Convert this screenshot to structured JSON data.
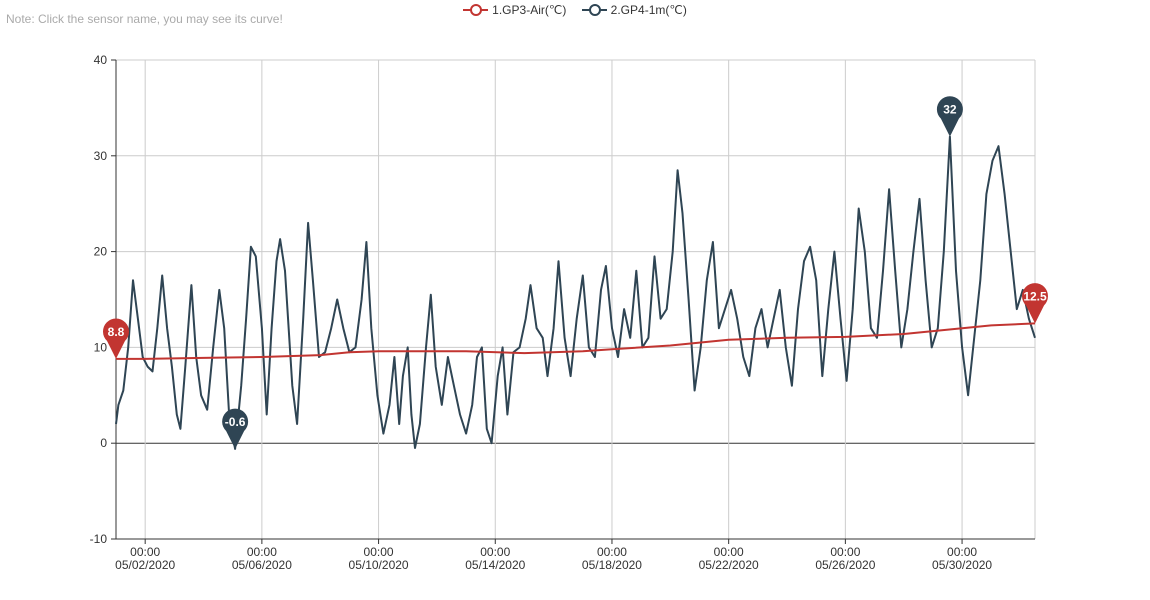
{
  "note": "Note: Click the sensor name, you may see its curve!",
  "colors": {
    "air": "#c23531",
    "ground": "#2f4554",
    "grid": "#cccccc",
    "axis": "#333333",
    "text": "#333333"
  },
  "chart_data": {
    "type": "line",
    "title": "",
    "xlabel": "",
    "ylabel": "",
    "ylim": [
      -10,
      40
    ],
    "yticks": [
      -10,
      0,
      10,
      20,
      30,
      40
    ],
    "xlim": [
      "2020-05-01T00:00",
      "2020-06-01T12:00"
    ],
    "xticks": [
      {
        "time": "00:00",
        "date": "05/02/2020"
      },
      {
        "time": "00:00",
        "date": "05/06/2020"
      },
      {
        "time": "00:00",
        "date": "05/10/2020"
      },
      {
        "time": "00:00",
        "date": "05/14/2020"
      },
      {
        "time": "00:00",
        "date": "05/18/2020"
      },
      {
        "time": "00:00",
        "date": "05/22/2020"
      },
      {
        "time": "00:00",
        "date": "05/26/2020"
      },
      {
        "time": "00:00",
        "date": "05/30/2020"
      }
    ],
    "grid": true,
    "legend_position": "top-center",
    "series": [
      {
        "name": "1.GP3-Air(℃)",
        "color": "#c23531",
        "points": [
          [
            "2020-05-01T00:00",
            8.8
          ],
          [
            "2020-05-02T00:00",
            8.8
          ],
          [
            "2020-05-04T00:00",
            8.9
          ],
          [
            "2020-05-06T00:00",
            9.0
          ],
          [
            "2020-05-08T00:00",
            9.2
          ],
          [
            "2020-05-09T00:00",
            9.5
          ],
          [
            "2020-05-10T00:00",
            9.6
          ],
          [
            "2020-05-13T00:00",
            9.6
          ],
          [
            "2020-05-15T00:00",
            9.4
          ],
          [
            "2020-05-17T00:00",
            9.6
          ],
          [
            "2020-05-18T00:00",
            9.8
          ],
          [
            "2020-05-20T00:00",
            10.2
          ],
          [
            "2020-05-21T00:00",
            10.5
          ],
          [
            "2020-05-22T00:00",
            10.8
          ],
          [
            "2020-05-24T00:00",
            11.0
          ],
          [
            "2020-05-26T00:00",
            11.1
          ],
          [
            "2020-05-28T00:00",
            11.4
          ],
          [
            "2020-05-30T00:00",
            12.0
          ],
          [
            "2020-05-31T00:00",
            12.3
          ],
          [
            "2020-06-01T12:00",
            12.5
          ]
        ],
        "markers": [
          {
            "label": "8.8",
            "time": "2020-05-01T00:00",
            "value": 8.8
          },
          {
            "label": "12.5",
            "time": "2020-06-01T12:00",
            "value": 12.5
          }
        ]
      },
      {
        "name": "2.GP4-1m(℃)",
        "color": "#2f4554",
        "points": [
          [
            "2020-05-01T00:00",
            2.0
          ],
          [
            "2020-05-01T02:00",
            4.0
          ],
          [
            "2020-05-01T06:00",
            5.5
          ],
          [
            "2020-05-01T10:00",
            10.0
          ],
          [
            "2020-05-01T14:00",
            17.0
          ],
          [
            "2020-05-01T18:00",
            13.0
          ],
          [
            "2020-05-01T22:00",
            9.0
          ],
          [
            "2020-05-02T02:00",
            8.0
          ],
          [
            "2020-05-02T06:00",
            7.5
          ],
          [
            "2020-05-02T10:00",
            12.0
          ],
          [
            "2020-05-02T14:00",
            17.5
          ],
          [
            "2020-05-02T18:00",
            12.0
          ],
          [
            "2020-05-02T22:00",
            8.0
          ],
          [
            "2020-05-03T02:00",
            3.0
          ],
          [
            "2020-05-03T05:00",
            1.5
          ],
          [
            "2020-05-03T09:00",
            8.0
          ],
          [
            "2020-05-03T14:00",
            16.5
          ],
          [
            "2020-05-03T18:00",
            9.0
          ],
          [
            "2020-05-03T22:00",
            5.0
          ],
          [
            "2020-05-04T03:00",
            3.5
          ],
          [
            "2020-05-04T08:00",
            10.0
          ],
          [
            "2020-05-04T13:00",
            16.0
          ],
          [
            "2020-05-04T17:00",
            12.0
          ],
          [
            "2020-05-04T21:00",
            3.0
          ],
          [
            "2020-05-05T02:00",
            -0.6
          ],
          [
            "2020-05-05T07:00",
            6.0
          ],
          [
            "2020-05-05T11:00",
            13.0
          ],
          [
            "2020-05-05T15:00",
            20.5
          ],
          [
            "2020-05-05T19:00",
            19.5
          ],
          [
            "2020-05-06T00:00",
            12.0
          ],
          [
            "2020-05-06T04:00",
            3.0
          ],
          [
            "2020-05-06T08:00",
            12.0
          ],
          [
            "2020-05-06T12:00",
            19.0
          ],
          [
            "2020-05-06T15:00",
            21.3
          ],
          [
            "2020-05-06T19:00",
            18.0
          ],
          [
            "2020-05-07T01:00",
            6.0
          ],
          [
            "2020-05-07T05:00",
            2.0
          ],
          [
            "2020-05-07T10:00",
            13.0
          ],
          [
            "2020-05-07T14:00",
            23.0
          ],
          [
            "2020-05-07T18:00",
            17.0
          ],
          [
            "2020-05-07T23:00",
            9.0
          ],
          [
            "2020-05-08T04:00",
            9.5
          ],
          [
            "2020-05-08T09:00",
            12.0
          ],
          [
            "2020-05-08T14:00",
            15.0
          ],
          [
            "2020-05-08T19:00",
            12.0
          ],
          [
            "2020-05-09T00:00",
            9.5
          ],
          [
            "2020-05-09T05:00",
            10.0
          ],
          [
            "2020-05-09T10:00",
            15.0
          ],
          [
            "2020-05-09T14:00",
            21.0
          ],
          [
            "2020-05-09T18:00",
            12.0
          ],
          [
            "2020-05-09T23:00",
            5.0
          ],
          [
            "2020-05-10T04:00",
            1.0
          ],
          [
            "2020-05-10T09:00",
            4.0
          ],
          [
            "2020-05-10T13:00",
            9.0
          ],
          [
            "2020-05-10T17:00",
            2.0
          ],
          [
            "2020-05-10T20:00",
            7.0
          ],
          [
            "2020-05-11T00:00",
            10.0
          ],
          [
            "2020-05-11T03:00",
            3.0
          ],
          [
            "2020-05-11T06:00",
            -0.5
          ],
          [
            "2020-05-11T10:00",
            2.0
          ],
          [
            "2020-05-11T15:00",
            10.0
          ],
          [
            "2020-05-11T19:00",
            15.5
          ],
          [
            "2020-05-11T23:00",
            8.0
          ],
          [
            "2020-05-12T04:00",
            4.0
          ],
          [
            "2020-05-12T09:00",
            9.0
          ],
          [
            "2020-05-12T14:00",
            6.0
          ],
          [
            "2020-05-12T19:00",
            3.0
          ],
          [
            "2020-05-13T00:00",
            1.0
          ],
          [
            "2020-05-13T05:00",
            4.0
          ],
          [
            "2020-05-13T09:00",
            9.0
          ],
          [
            "2020-05-13T13:00",
            10.0
          ],
          [
            "2020-05-13T17:00",
            1.5
          ],
          [
            "2020-05-13T21:00",
            0.0
          ],
          [
            "2020-05-14T02:00",
            7.0
          ],
          [
            "2020-05-14T06:00",
            10.0
          ],
          [
            "2020-05-14T10:00",
            3.0
          ],
          [
            "2020-05-14T15:00",
            9.5
          ],
          [
            "2020-05-14T20:00",
            10.0
          ],
          [
            "2020-05-15T01:00",
            13.0
          ],
          [
            "2020-05-15T05:00",
            16.5
          ],
          [
            "2020-05-15T10:00",
            12.0
          ],
          [
            "2020-05-15T15:00",
            11.0
          ],
          [
            "2020-05-15T19:00",
            7.0
          ],
          [
            "2020-05-16T00:00",
            12.0
          ],
          [
            "2020-05-16T04:00",
            19.0
          ],
          [
            "2020-05-16T09:00",
            11.0
          ],
          [
            "2020-05-16T14:00",
            7.0
          ],
          [
            "2020-05-16T19:00",
            13.0
          ],
          [
            "2020-05-17T00:00",
            17.5
          ],
          [
            "2020-05-17T05:00",
            10.0
          ],
          [
            "2020-05-17T10:00",
            9.0
          ],
          [
            "2020-05-17T15:00",
            16.0
          ],
          [
            "2020-05-17T19:00",
            18.5
          ],
          [
            "2020-05-18T00:00",
            12.0
          ],
          [
            "2020-05-18T05:00",
            9.0
          ],
          [
            "2020-05-18T10:00",
            14.0
          ],
          [
            "2020-05-18T15:00",
            11.0
          ],
          [
            "2020-05-18T20:00",
            18.0
          ],
          [
            "2020-05-19T01:00",
            10.0
          ],
          [
            "2020-05-19T06:00",
            11.0
          ],
          [
            "2020-05-19T11:00",
            19.5
          ],
          [
            "2020-05-19T16:00",
            13.0
          ],
          [
            "2020-05-19T21:00",
            14.0
          ],
          [
            "2020-05-20T02:00",
            20.0
          ],
          [
            "2020-05-20T06:00",
            28.5
          ],
          [
            "2020-05-20T10:00",
            24.0
          ],
          [
            "2020-05-20T15:00",
            15.0
          ],
          [
            "2020-05-20T20:00",
            5.5
          ],
          [
            "2020-05-21T01:00",
            10.0
          ],
          [
            "2020-05-21T06:00",
            17.0
          ],
          [
            "2020-05-21T11:00",
            21.0
          ],
          [
            "2020-05-21T16:00",
            12.0
          ],
          [
            "2020-05-21T21:00",
            14.0
          ],
          [
            "2020-05-22T02:00",
            16.0
          ],
          [
            "2020-05-22T07:00",
            13.0
          ],
          [
            "2020-05-22T12:00",
            9.0
          ],
          [
            "2020-05-22T17:00",
            7.0
          ],
          [
            "2020-05-22T22:00",
            12.0
          ],
          [
            "2020-05-23T03:00",
            14.0
          ],
          [
            "2020-05-23T08:00",
            10.0
          ],
          [
            "2020-05-23T13:00",
            13.0
          ],
          [
            "2020-05-23T18:00",
            16.0
          ],
          [
            "2020-05-23T23:00",
            10.0
          ],
          [
            "2020-05-24T04:00",
            6.0
          ],
          [
            "2020-05-24T09:00",
            14.0
          ],
          [
            "2020-05-24T14:00",
            19.0
          ],
          [
            "2020-05-24T19:00",
            20.5
          ],
          [
            "2020-05-25T00:00",
            17.0
          ],
          [
            "2020-05-25T05:00",
            7.0
          ],
          [
            "2020-05-25T10:00",
            14.0
          ],
          [
            "2020-05-25T15:00",
            20.0
          ],
          [
            "2020-05-25T20:00",
            13.0
          ],
          [
            "2020-05-26T01:00",
            6.5
          ],
          [
            "2020-05-26T06:00",
            14.0
          ],
          [
            "2020-05-26T11:00",
            24.5
          ],
          [
            "2020-05-26T16:00",
            20.0
          ],
          [
            "2020-05-26T21:00",
            12.0
          ],
          [
            "2020-05-27T02:00",
            11.0
          ],
          [
            "2020-05-27T07:00",
            18.0
          ],
          [
            "2020-05-27T12:00",
            26.5
          ],
          [
            "2020-05-27T17:00",
            18.0
          ],
          [
            "2020-05-27T22:00",
            10.0
          ],
          [
            "2020-05-28T03:00",
            14.0
          ],
          [
            "2020-05-28T08:00",
            20.0
          ],
          [
            "2020-05-28T13:00",
            25.5
          ],
          [
            "2020-05-28T18:00",
            17.0
          ],
          [
            "2020-05-28T23:00",
            10.0
          ],
          [
            "2020-05-29T04:00",
            12.0
          ],
          [
            "2020-05-29T09:00",
            20.0
          ],
          [
            "2020-05-29T14:00",
            32.0
          ],
          [
            "2020-05-29T19:00",
            18.0
          ],
          [
            "2020-05-30T00:00",
            10.0
          ],
          [
            "2020-05-30T05:00",
            5.0
          ],
          [
            "2020-05-30T10:00",
            11.0
          ],
          [
            "2020-05-30T15:00",
            17.0
          ],
          [
            "2020-05-30T20:00",
            26.0
          ],
          [
            "2020-05-31T01:00",
            29.5
          ],
          [
            "2020-05-31T06:00",
            31.0
          ],
          [
            "2020-05-31T11:00",
            26.0
          ],
          [
            "2020-05-31T16:00",
            20.0
          ],
          [
            "2020-05-31T21:00",
            14.0
          ],
          [
            "2020-06-01T02:00",
            16.0
          ],
          [
            "2020-06-01T07:00",
            13.0
          ],
          [
            "2020-06-01T12:00",
            11.0
          ]
        ],
        "markers": [
          {
            "label": "-0.6",
            "time": "2020-05-05T02:00",
            "value": -0.6
          },
          {
            "label": "32",
            "time": "2020-05-29T14:00",
            "value": 32
          }
        ]
      }
    ]
  }
}
